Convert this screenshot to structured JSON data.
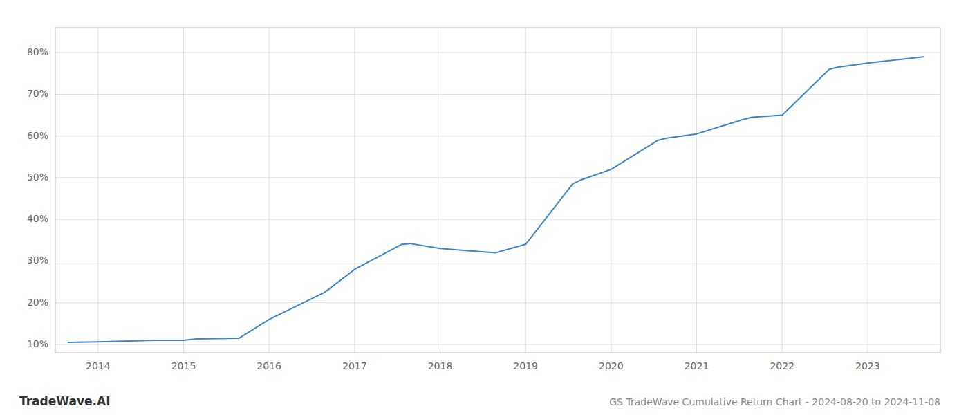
{
  "chart_data": {
    "type": "line",
    "title": "GS TradeWave Cumulative Return Chart - 2024-08-20 to 2024-11-08",
    "annotations": [
      "TradeWave.AI"
    ],
    "x": [
      2013.65,
      2014.0,
      2014.65,
      2015.0,
      2015.15,
      2015.65,
      2016.0,
      2016.65,
      2017.0,
      2017.55,
      2017.65,
      2018.0,
      2018.3,
      2018.65,
      2019.0,
      2019.55,
      2019.65,
      2020.0,
      2020.55,
      2020.65,
      2021.0,
      2021.55,
      2021.65,
      2022.0,
      2022.55,
      2022.65,
      2023.0,
      2023.65
    ],
    "values": [
      10.5,
      10.6,
      11.0,
      11.0,
      11.3,
      11.5,
      16.0,
      22.5,
      28.0,
      34.0,
      34.2,
      33.0,
      32.5,
      32.0,
      34.0,
      48.5,
      49.5,
      52.0,
      59.0,
      59.5,
      60.5,
      64.0,
      64.5,
      65.0,
      76.0,
      76.5,
      77.5,
      79.0
    ],
    "color": "#3d85c8",
    "xlim": [
      2013.5,
      2023.85
    ],
    "ylim": [
      8,
      86
    ],
    "xticks": [
      2014,
      2015,
      2016,
      2017,
      2018,
      2019,
      2020,
      2021,
      2022,
      2023
    ],
    "yticks": [
      {
        "value": 10,
        "label": "10%"
      },
      {
        "value": 20,
        "label": "20%"
      },
      {
        "value": 30,
        "label": "30%"
      },
      {
        "value": 40,
        "label": "40%"
      },
      {
        "value": 50,
        "label": "50%"
      },
      {
        "value": 60,
        "label": "60%"
      },
      {
        "value": 70,
        "label": "70%"
      },
      {
        "value": 80,
        "label": "80%"
      }
    ],
    "grid": true
  }
}
